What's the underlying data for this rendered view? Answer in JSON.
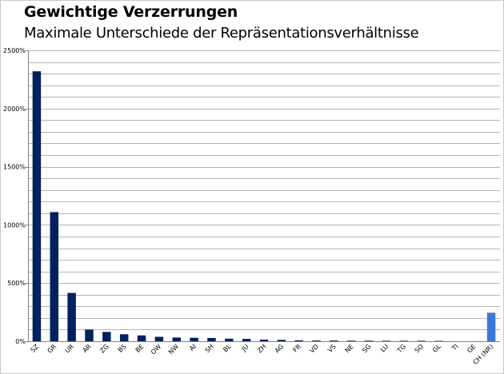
{
  "chart_data": {
    "type": "bar",
    "title": "Gewichtige Verzerrungen",
    "subtitle": "Maximale Unterschiede der Repräsentationsverhältnisse",
    "xlabel": "",
    "ylabel": "",
    "ylim": [
      0,
      2500
    ],
    "yticks": [
      0,
      500,
      1000,
      1500,
      2000,
      2500
    ],
    "ytick_labels": [
      "0%",
      "500%",
      "1000%",
      "1500%",
      "2000%",
      "2500%"
    ],
    "grid": true,
    "legend": "none",
    "categories": [
      "SZ",
      "GR",
      "UR",
      "AR",
      "ZG",
      "BS",
      "BE",
      "OW",
      "NW",
      "AI",
      "SH",
      "BL",
      "JU",
      "ZH",
      "AG",
      "FR",
      "VD",
      "VS",
      "NE",
      "SG",
      "LU",
      "TG",
      "SO",
      "GL",
      "TI",
      "GE",
      "CH (NR)"
    ],
    "values": [
      2320,
      1110,
      415,
      100,
      80,
      60,
      50,
      38,
      32,
      30,
      28,
      22,
      20,
      14,
      12,
      8,
      6,
      6,
      5,
      5,
      4,
      4,
      4,
      3,
      0,
      0,
      245
    ],
    "colors": {
      "default": "#002060",
      "highlight": "#3c78d8",
      "grid": "#b3b3b3",
      "axis": "#808080"
    },
    "highlight_category": "CH (NR)"
  }
}
